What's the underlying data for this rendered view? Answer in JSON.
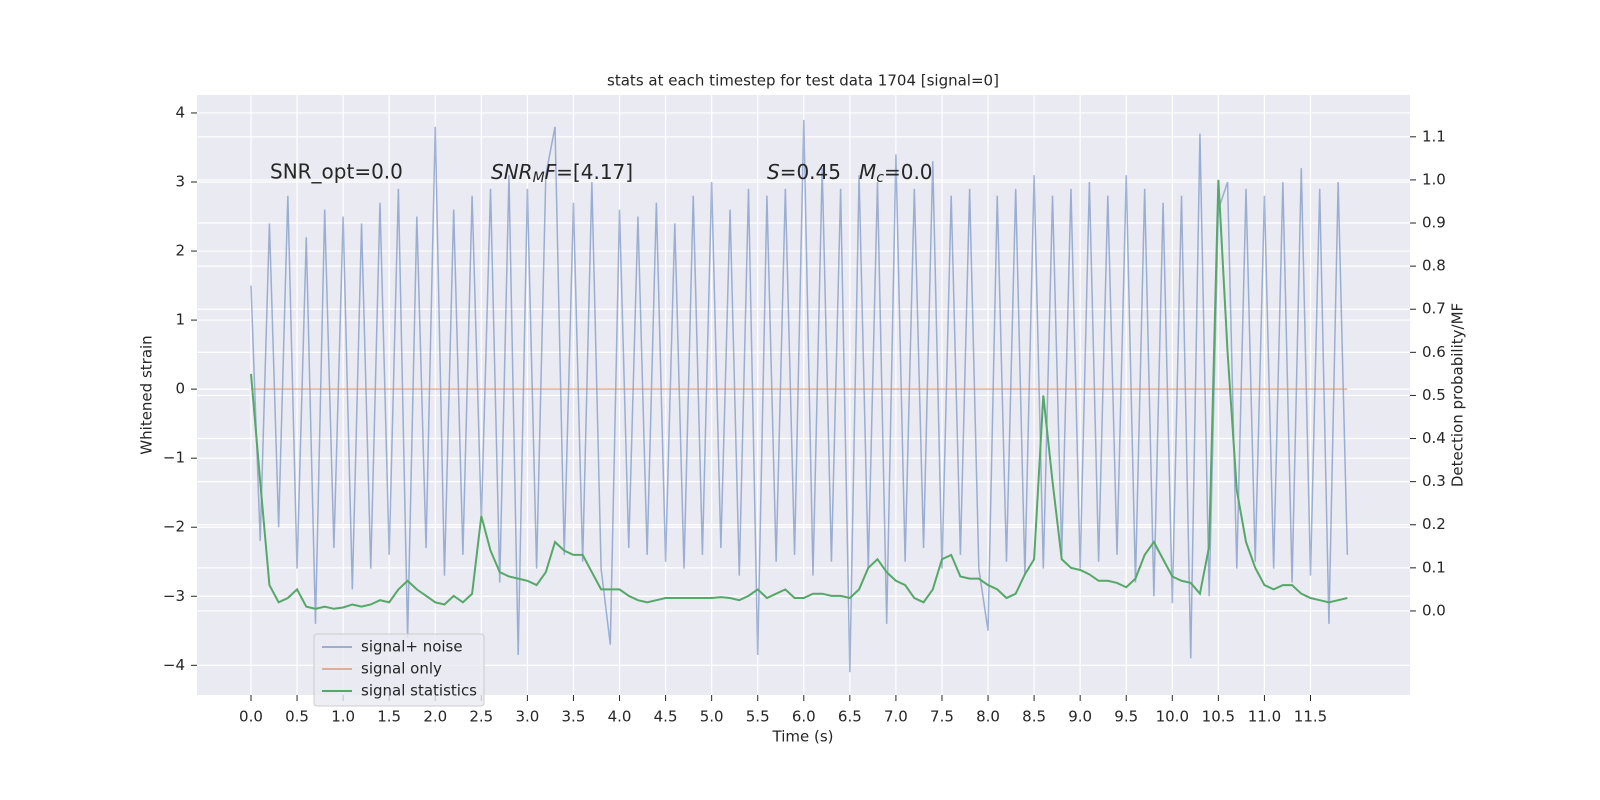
{
  "chart_data": {
    "type": "line",
    "title": "stats at each timestep for test data 1704 [signal=0]",
    "xlabel": "Time (s)",
    "ylabel": "Whitened strain",
    "y2label": "Detection probability/MF",
    "annotations": [
      "SNR_opt=0.0",
      [
        "SNR",
        "M",
        "F",
        "=[4.17]"
      ],
      [
        "S",
        "=0.45",
        "M",
        "c",
        "=0.0"
      ]
    ],
    "x": [
      0,
      0.1,
      0.2,
      0.3,
      0.4,
      0.5,
      0.6,
      0.7,
      0.8,
      0.9,
      1,
      1.1,
      1.2,
      1.3,
      1.4,
      1.5,
      1.6,
      1.7,
      1.8,
      1.9,
      2,
      2.1,
      2.2,
      2.3,
      2.4,
      2.5,
      2.6,
      2.7,
      2.8,
      2.9,
      3,
      3.1,
      3.2,
      3.3,
      3.4,
      3.5,
      3.6,
      3.7,
      3.8,
      3.9,
      4,
      4.1,
      4.2,
      4.3,
      4.4,
      4.5,
      4.6,
      4.7,
      4.8,
      4.9,
      5,
      5.1,
      5.2,
      5.3,
      5.4,
      5.5,
      5.6,
      5.7,
      5.8,
      5.9,
      6,
      6.1,
      6.2,
      6.3,
      6.4,
      6.5,
      6.6,
      6.7,
      6.8,
      6.9,
      7,
      7.1,
      7.2,
      7.3,
      7.4,
      7.5,
      7.6,
      7.7,
      7.8,
      7.9,
      8,
      8.1,
      8.2,
      8.3,
      8.4,
      8.5,
      8.6,
      8.7,
      8.8,
      8.9,
      9,
      9.1,
      9.2,
      9.3,
      9.4,
      9.5,
      9.6,
      9.7,
      9.8,
      9.9,
      10,
      10.1,
      10.2,
      10.3,
      10.4,
      10.5,
      10.6,
      10.7,
      10.8,
      10.9,
      11,
      11.1,
      11.2,
      11.3,
      11.4,
      11.5,
      11.6,
      11.7,
      11.8,
      11.9
    ],
    "series": [
      {
        "name": "signal+ noise",
        "color": "#4c72b0",
        "opacity": 0.5,
        "values": [
          1.5,
          -2.2,
          2.4,
          -2.0,
          2.8,
          -2.6,
          2.2,
          -3.4,
          2.6,
          -2.3,
          2.5,
          -2.9,
          2.4,
          -2.6,
          2.7,
          -2.4,
          2.9,
          -3.6,
          2.5,
          -2.3,
          3.8,
          -2.7,
          2.6,
          -2.4,
          2.8,
          -1.9,
          2.9,
          -2.8,
          3.1,
          -3.85,
          2.9,
          -2.6,
          3.1,
          3.8,
          -2.4,
          2.7,
          -2.5,
          3.0,
          -2.6,
          -3.7,
          2.6,
          -2.3,
          2.5,
          -2.4,
          2.7,
          -2.5,
          2.4,
          -2.6,
          2.8,
          -2.4,
          3.0,
          -2.3,
          2.6,
          -2.7,
          2.9,
          -3.85,
          2.8,
          -2.5,
          2.9,
          -2.4,
          3.9,
          -2.7,
          3.2,
          -2.5,
          2.9,
          -4.1,
          3.1,
          -2.6,
          3.0,
          -3.4,
          3.4,
          -2.5,
          2.9,
          -2.3,
          3.3,
          -2.6,
          2.8,
          -2.4,
          2.9,
          -2.6,
          -3.5,
          2.8,
          -2.5,
          2.9,
          -2.7,
          3.1,
          -2.6,
          2.8,
          -2.4,
          2.9,
          -2.6,
          3.0,
          -2.5,
          2.8,
          -2.4,
          3.1,
          -2.8,
          2.9,
          -3.0,
          2.7,
          -3.1,
          2.8,
          -3.9,
          3.7,
          -3.0,
          2.6,
          3.0,
          -2.6,
          2.9,
          -2.5,
          2.8,
          -2.6,
          3.0,
          -2.8,
          3.2,
          -2.7,
          2.9,
          -3.4,
          3.0,
          -2.4
        ]
      },
      {
        "name": "signal only",
        "color": "#dd8452",
        "opacity": 0.6,
        "values": [
          0,
          0,
          0,
          0,
          0,
          0,
          0,
          0,
          0,
          0,
          0,
          0,
          0,
          0,
          0,
          0,
          0,
          0,
          0,
          0,
          0,
          0,
          0,
          0,
          0,
          0,
          0,
          0,
          0,
          0,
          0,
          0,
          0,
          0,
          0,
          0,
          0,
          0,
          0,
          0,
          0,
          0,
          0,
          0,
          0,
          0,
          0,
          0,
          0,
          0,
          0,
          0,
          0,
          0,
          0,
          0,
          0,
          0,
          0,
          0,
          0,
          0,
          0,
          0,
          0,
          0,
          0,
          0,
          0,
          0,
          0,
          0,
          0,
          0,
          0,
          0,
          0,
          0,
          0,
          0,
          0,
          0,
          0,
          0,
          0,
          0,
          0,
          0,
          0,
          0,
          0,
          0,
          0,
          0,
          0,
          0,
          0,
          0,
          0,
          0,
          0,
          0,
          0,
          0,
          0,
          0,
          0,
          0,
          0,
          0,
          0,
          0,
          0,
          0,
          0,
          0,
          0,
          0,
          0,
          0
        ]
      },
      {
        "name": "signal statistics",
        "color": "#55a868",
        "opacity": 1,
        "axis": "y2",
        "values": [
          0.55,
          0.3,
          0.06,
          0.02,
          0.03,
          0.05,
          0.01,
          0.005,
          0.01,
          0.005,
          0.008,
          0.015,
          0.01,
          0.015,
          0.025,
          0.02,
          0.05,
          0.07,
          0.05,
          0.035,
          0.02,
          0.015,
          0.035,
          0.02,
          0.04,
          0.22,
          0.14,
          0.09,
          0.08,
          0.075,
          0.07,
          0.06,
          0.09,
          0.16,
          0.14,
          0.13,
          0.13,
          0.09,
          0.05,
          0.05,
          0.05,
          0.035,
          0.025,
          0.02,
          0.025,
          0.03,
          0.03,
          0.03,
          0.03,
          0.03,
          0.03,
          0.032,
          0.03,
          0.025,
          0.035,
          0.05,
          0.03,
          0.04,
          0.05,
          0.03,
          0.03,
          0.04,
          0.04,
          0.035,
          0.035,
          0.03,
          0.05,
          0.1,
          0.12,
          0.09,
          0.07,
          0.06,
          0.03,
          0.02,
          0.05,
          0.12,
          0.13,
          0.08,
          0.075,
          0.075,
          0.06,
          0.05,
          0.03,
          0.04,
          0.085,
          0.12,
          0.5,
          0.3,
          0.12,
          0.1,
          0.095,
          0.085,
          0.07,
          0.07,
          0.065,
          0.055,
          0.075,
          0.13,
          0.16,
          0.12,
          0.08,
          0.07,
          0.065,
          0.04,
          0.15,
          1.0,
          0.6,
          0.28,
          0.16,
          0.1,
          0.06,
          0.05,
          0.06,
          0.06,
          0.04,
          0.03,
          0.025,
          0.02,
          0.025,
          0.03
        ]
      }
    ],
    "xlim": [
      -0.586,
      12.58
    ],
    "xticks": [
      {
        "value": 0,
        "label": "0.0"
      },
      {
        "value": 0.5,
        "label": "0.5"
      },
      {
        "value": 1,
        "label": "1.0"
      },
      {
        "value": 1.5,
        "label": "1.5"
      },
      {
        "value": 2,
        "label": "2.0"
      },
      {
        "value": 2.5,
        "label": "2.5"
      },
      {
        "value": 3,
        "label": "3.0"
      },
      {
        "value": 3.5,
        "label": "3.5"
      },
      {
        "value": 4,
        "label": "4.0"
      },
      {
        "value": 4.5,
        "label": "4.5"
      },
      {
        "value": 5,
        "label": "5.0"
      },
      {
        "value": 5.5,
        "label": "5.5"
      },
      {
        "value": 6,
        "label": "6.0"
      },
      {
        "value": 6.5,
        "label": "6.5"
      },
      {
        "value": 7,
        "label": "7.0"
      },
      {
        "value": 7.5,
        "label": "7.5"
      },
      {
        "value": 8,
        "label": "8.0"
      },
      {
        "value": 8.5,
        "label": "8.5"
      },
      {
        "value": 9,
        "label": "9.0"
      },
      {
        "value": 9.5,
        "label": "9.5"
      },
      {
        "value": 10,
        "label": "10.0"
      },
      {
        "value": 10.5,
        "label": "10.5"
      },
      {
        "value": 11,
        "label": "11.0"
      },
      {
        "value": 11.5,
        "label": "11.5"
      }
    ],
    "ylim": [
      -4.43,
      4.26
    ],
    "yticks": [
      {
        "value": -4,
        "label": "−4"
      },
      {
        "value": -3,
        "label": "−3"
      },
      {
        "value": -2,
        "label": "−2"
      },
      {
        "value": -1,
        "label": "−1"
      },
      0,
      1,
      2,
      3,
      4
    ],
    "y2lim": [
      -0.195,
      1.197
    ],
    "y2ticks": [
      {
        "value": 0,
        "label": "0.0"
      },
      {
        "value": 0.1,
        "label": "0.1"
      },
      {
        "value": 0.2,
        "label": "0.2"
      },
      {
        "value": 0.3,
        "label": "0.3"
      },
      {
        "value": 0.4,
        "label": "0.4"
      },
      {
        "value": 0.5,
        "label": "0.5"
      },
      {
        "value": 0.6,
        "label": "0.6"
      },
      {
        "value": 0.7,
        "label": "0.7"
      },
      {
        "value": 0.8,
        "label": "0.8"
      },
      {
        "value": 0.9,
        "label": "0.9"
      },
      {
        "value": 1,
        "label": "1.0"
      },
      {
        "value": 1.1,
        "label": "1.1"
      }
    ],
    "grid": true,
    "legend": "lower left"
  }
}
